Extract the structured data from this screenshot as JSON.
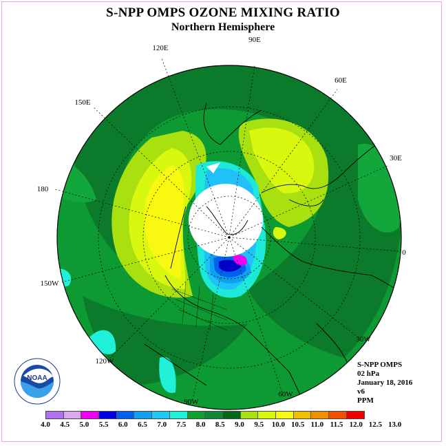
{
  "header": {
    "title": "S-NPP OMPS OZONE MIXING RATIO",
    "subtitle": "Northern Hemisphere"
  },
  "longitude_labels": [
    "90E",
    "60E",
    "120E",
    "150E",
    "30E",
    "180",
    "0",
    "150W",
    "30W",
    "120W",
    "60W",
    "90W"
  ],
  "info": {
    "instrument": "S-NPP OMPS",
    "level": "02 hPa",
    "date": "January 18, 2016",
    "version": "v6",
    "units": "PPM"
  },
  "logo": {
    "text": "NOAA",
    "icon": "noaa-logo-icon"
  },
  "colorbar": {
    "ticks": [
      "4.0",
      "4.5",
      "5.0",
      "5.5",
      "6.0",
      "6.5",
      "7.0",
      "7.5",
      "8.0",
      "8.5",
      "9.0",
      "9.5",
      "10.0",
      "10.5",
      "11.0",
      "11.5",
      "12.0",
      "12.5",
      "13.0"
    ],
    "colors": [
      "#b070f0",
      "#d8a8f0",
      "#f000f0",
      "#0000e0",
      "#0060f0",
      "#10a0f0",
      "#20c8f8",
      "#20f0d8",
      "#10a030",
      "#108838",
      "#006818",
      "#a8e010",
      "#d8f810",
      "#f8f810",
      "#f0c000",
      "#f09000",
      "#f05000",
      "#f00000",
      "#905030"
    ]
  }
}
